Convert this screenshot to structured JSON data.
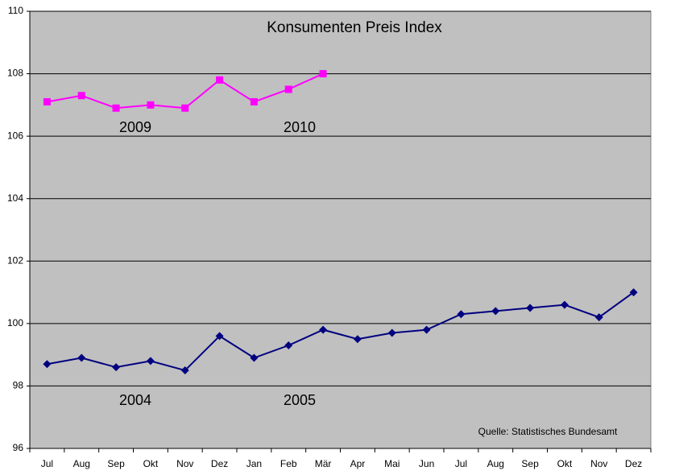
{
  "chart_data": {
    "type": "line",
    "title": "Konsumenten Preis Index",
    "categories": [
      "Jul",
      "Aug",
      "Sep",
      "Okt",
      "Nov",
      "Dez",
      "Jan",
      "Feb",
      "Mär",
      "Apr",
      "Mai",
      "Jun",
      "Jul",
      "Aug",
      "Sep",
      "Okt",
      "Nov",
      "Dez"
    ],
    "series": [
      {
        "color": "#000080",
        "marker": "diamond",
        "values": [
          98.7,
          98.9,
          98.6,
          98.8,
          98.5,
          99.6,
          98.9,
          99.3,
          99.8,
          99.5,
          99.7,
          99.8,
          100.3,
          100.4,
          100.5,
          100.6,
          100.2,
          101.0
        ]
      },
      {
        "color": "#ff00ff",
        "marker": "square",
        "values": [
          107.1,
          107.3,
          106.9,
          107.0,
          106.9,
          107.8,
          107.1,
          107.5,
          108.0,
          null,
          null,
          null,
          null,
          null,
          null,
          null,
          null,
          null
        ]
      }
    ],
    "annotations": [
      "2009",
      "2010",
      "2004",
      "2005",
      "Quelle: Statistisches Bundesamt"
    ],
    "ylim": [
      96,
      110
    ],
    "yticks": [
      96,
      98,
      100,
      102,
      104,
      106,
      108,
      110
    ],
    "grid": true
  }
}
